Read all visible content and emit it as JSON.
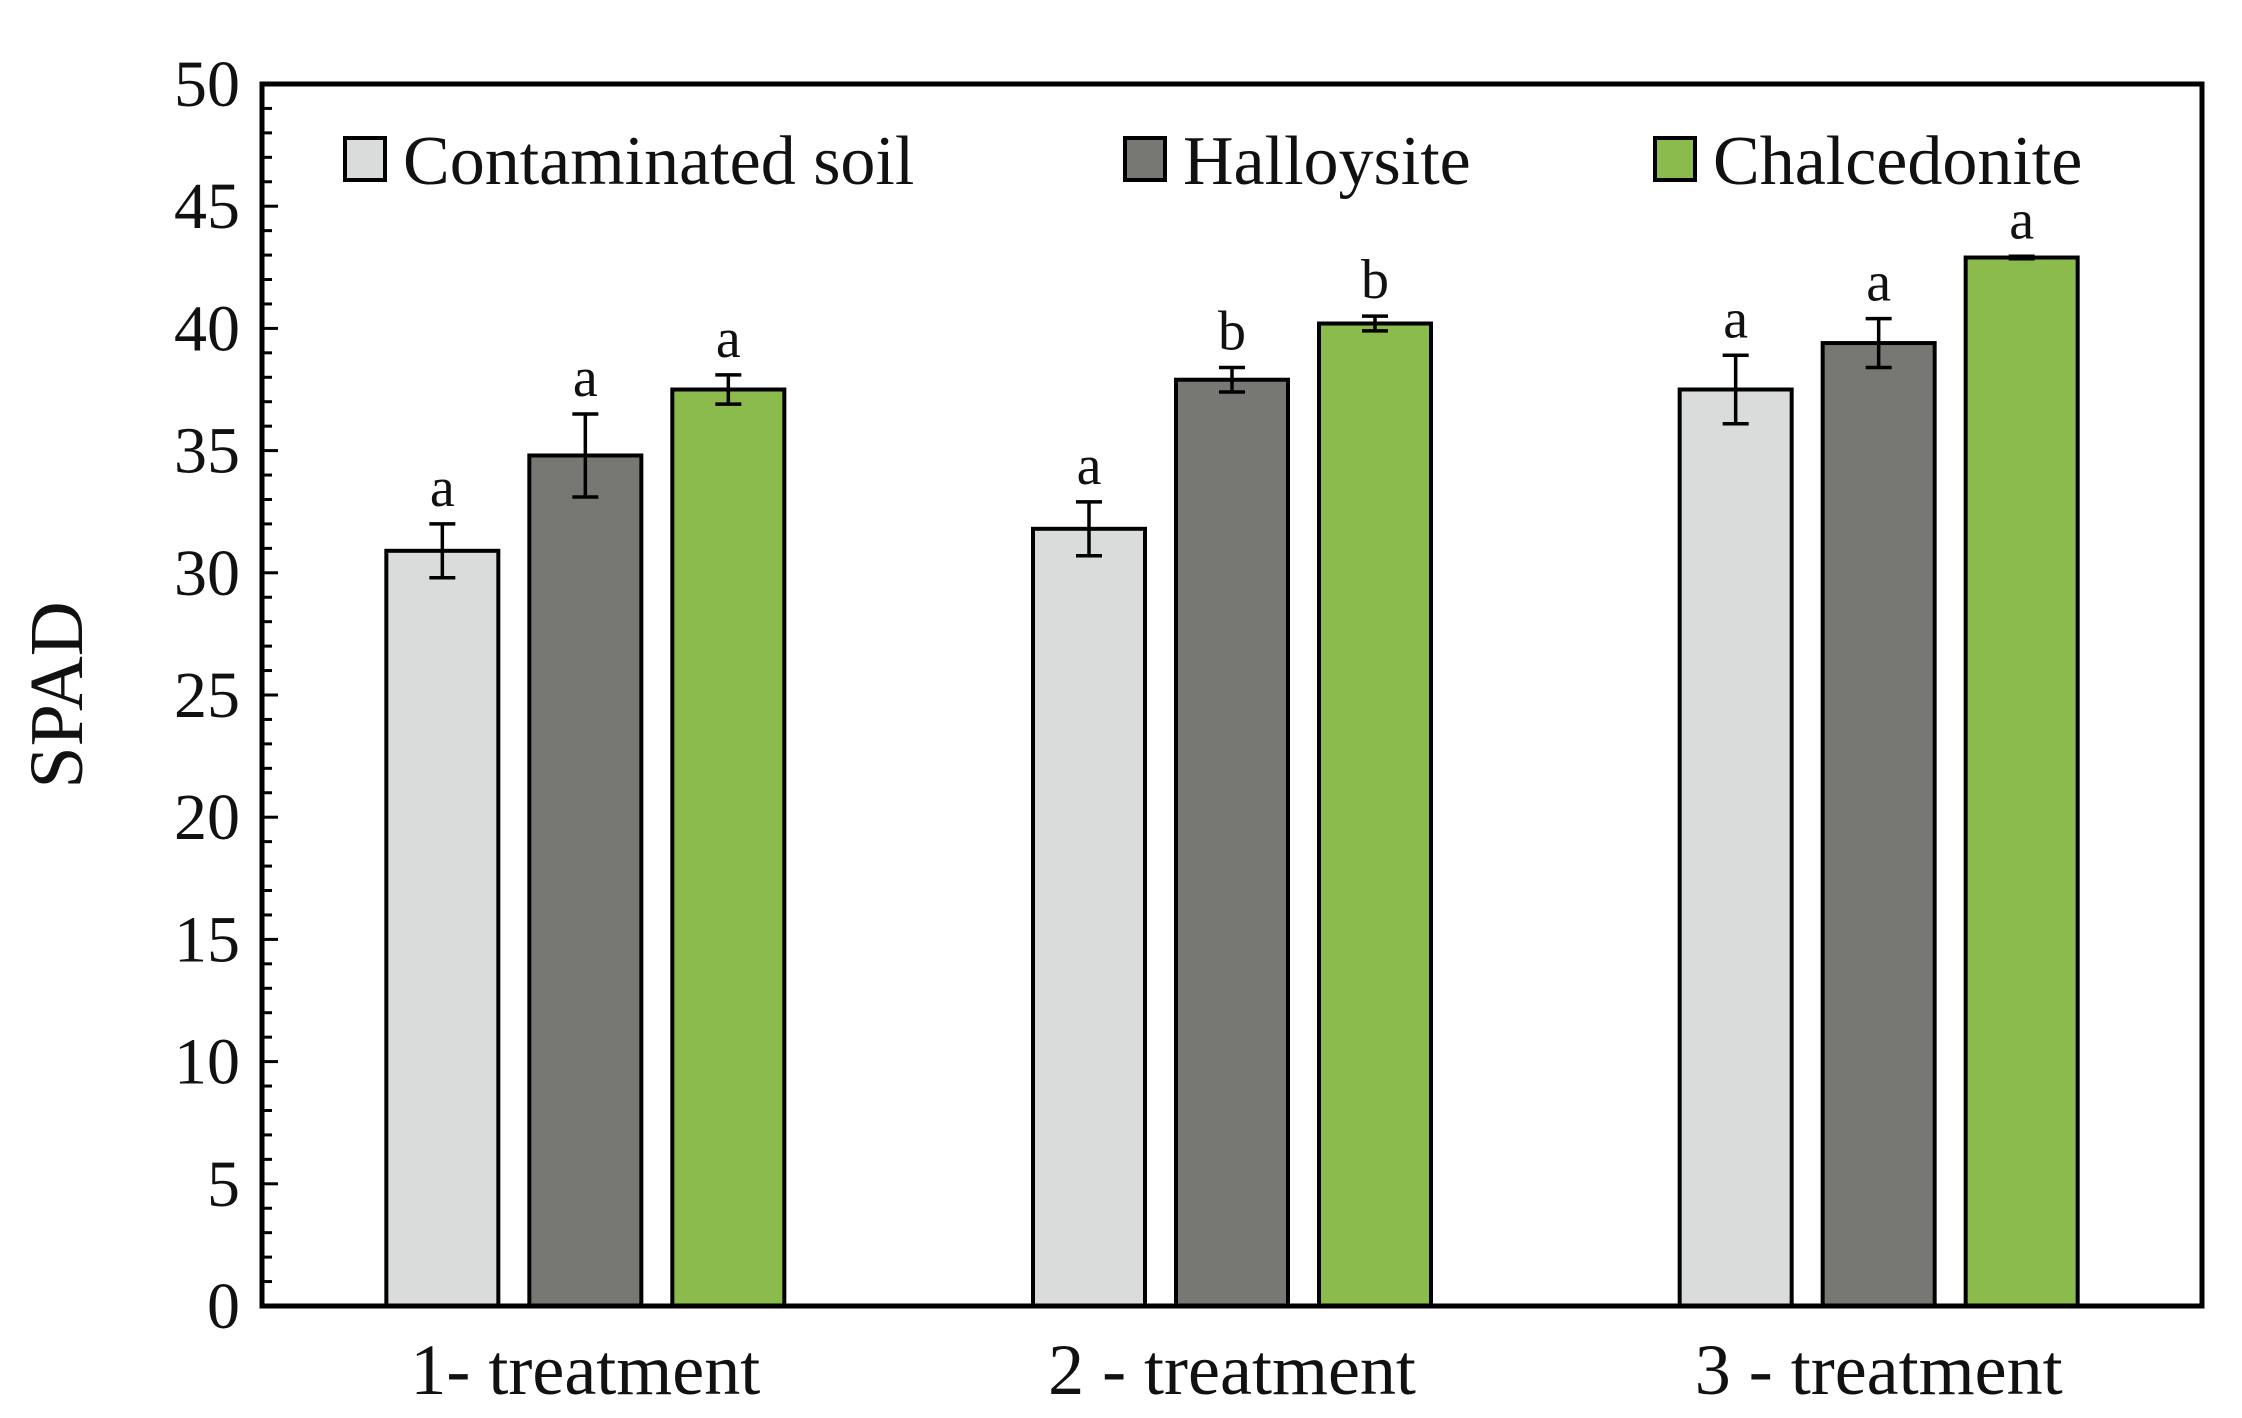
{
  "chart_data": {
    "type": "bar",
    "title": "",
    "xlabel": "",
    "ylabel": "SPAD",
    "ylim": [
      0,
      50
    ],
    "y_major_step": 5,
    "y_minor_step": 1,
    "grid": false,
    "legend_position": "top",
    "categories": [
      "1- treatment",
      "2 - treatment",
      "3 - treatment"
    ],
    "series": [
      {
        "name": "Contaminated soil",
        "color": "#d9dcdb",
        "values": [
          30.9,
          31.8,
          37.5
        ],
        "errors": [
          1.1,
          1.1,
          1.4
        ],
        "letters": [
          "a",
          "a",
          "a"
        ]
      },
      {
        "name": "Halloysite",
        "color": "#777874",
        "values": [
          34.8,
          37.9,
          39.4
        ],
        "errors": [
          1.7,
          0.5,
          1.0
        ],
        "letters": [
          "a",
          "b",
          "a"
        ]
      },
      {
        "name": "Chalcedonite",
        "color": "#8bba4d",
        "values": [
          37.5,
          40.2,
          42.9
        ],
        "errors": [
          0.6,
          0.3,
          0.05
        ],
        "letters": [
          "a",
          "b",
          "a"
        ]
      }
    ]
  }
}
